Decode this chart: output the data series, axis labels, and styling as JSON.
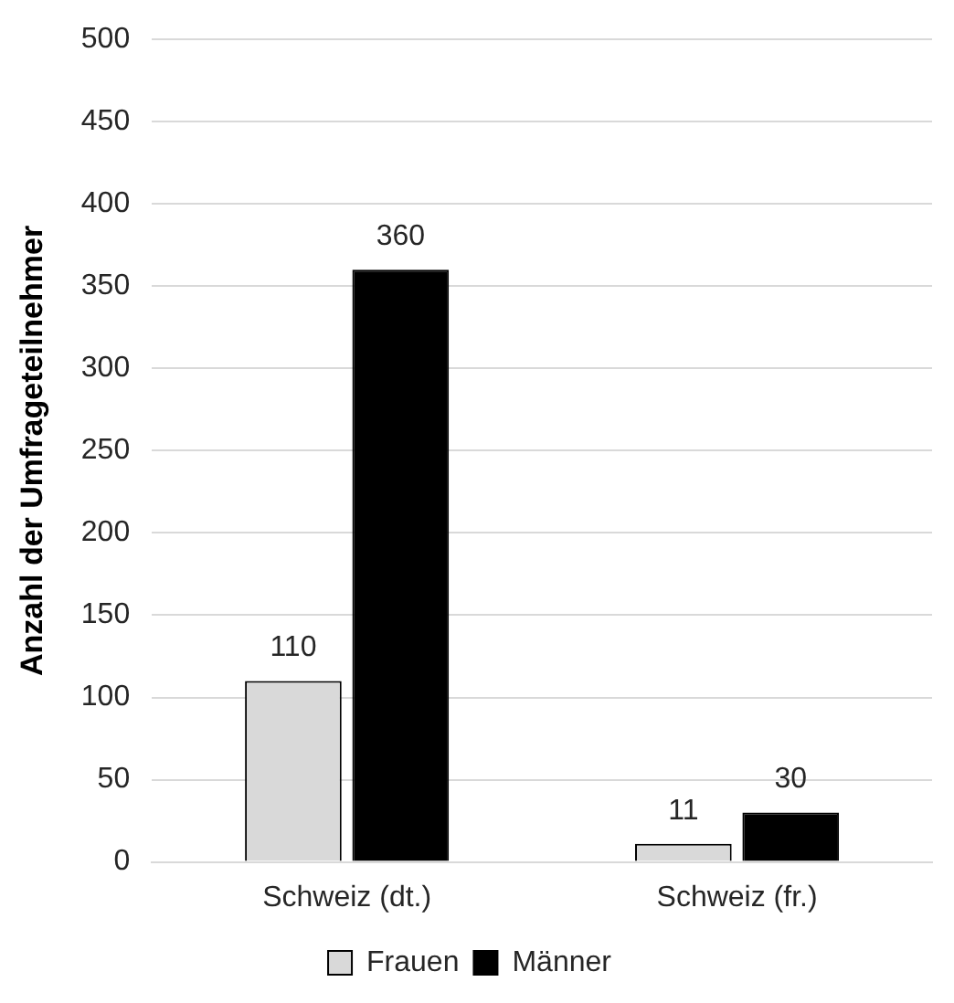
{
  "chart_data": {
    "type": "bar",
    "ylabel": "Anzahl der Umfrageteilnehmer",
    "categories": [
      "Schweiz (dt.)",
      "Schweiz (fr.)"
    ],
    "series": [
      {
        "name": "Frauen",
        "color": "#d9d9d9",
        "values": [
          110,
          11
        ]
      },
      {
        "name": "Männer",
        "color": "#000000",
        "values": [
          360,
          30
        ]
      }
    ],
    "ylim": [
      0,
      500
    ],
    "yticks": [
      0,
      50,
      100,
      150,
      200,
      250,
      300,
      350,
      400,
      450,
      500
    ],
    "grid": "y",
    "legend": "bottom",
    "data_labels": true
  }
}
